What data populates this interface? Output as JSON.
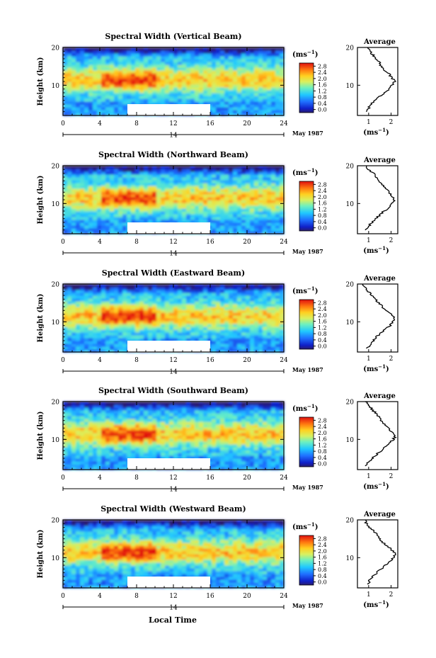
{
  "figure": {
    "x_axis_label": "Local Time",
    "date_label": "May 1987",
    "day_label": "14",
    "cbar_unit": "(ms",
    "cbar_unit_exp": "−1",
    "avg_title": "Average"
  },
  "chart_data": [
    {
      "type": "heatmap",
      "title": "Spectral Width (Vertical Beam)",
      "ylabel": "Height (km)",
      "xlabel": "Local Time",
      "x_ticks": [
        0,
        4,
        8,
        12,
        16,
        20,
        24
      ],
      "y_ticks": [
        10,
        20
      ],
      "xlim": [
        0,
        24
      ],
      "ylim": [
        2,
        20
      ],
      "colorbar_ticks": [
        0.0,
        0.4,
        0.8,
        1.2,
        1.6,
        2.0,
        2.4,
        2.8
      ],
      "colorbar_unit": "ms-1",
      "data_gap": {
        "x": [
          7,
          16
        ],
        "y": [
          2,
          5
        ]
      },
      "average_profile": {
        "title": "Average",
        "xlabel": "ms-1",
        "x_ticks": [
          1,
          2
        ],
        "xlim": [
          0.5,
          2.3
        ],
        "height": [
          3,
          4,
          5,
          6,
          7,
          8,
          9,
          10,
          11,
          12,
          13,
          14,
          15,
          16,
          17,
          18,
          19,
          20
        ],
        "value": [
          0.95,
          1.0,
          1.1,
          1.25,
          1.45,
          1.7,
          1.9,
          2.05,
          2.15,
          2.05,
          1.9,
          1.7,
          1.55,
          1.5,
          1.35,
          1.2,
          1.05,
          0.95
        ]
      }
    },
    {
      "type": "heatmap",
      "title": "Spectral Width (Northward Beam)",
      "ylabel": "Height (km)",
      "xlabel": "Local Time",
      "x_ticks": [
        0,
        4,
        8,
        12,
        16,
        20,
        24
      ],
      "y_ticks": [
        10,
        20
      ],
      "xlim": [
        0,
        24
      ],
      "ylim": [
        2,
        20
      ],
      "colorbar_ticks": [
        0.0,
        0.4,
        0.8,
        1.2,
        1.6,
        2.0,
        2.4,
        2.8
      ],
      "colorbar_unit": "ms-1",
      "data_gap": {
        "x": [
          7,
          16
        ],
        "y": [
          2,
          5
        ]
      },
      "average_profile": {
        "title": "Average",
        "xlabel": "ms-1",
        "x_ticks": [
          1,
          2
        ],
        "xlim": [
          0.5,
          2.3
        ],
        "height": [
          3,
          4,
          5,
          6,
          7,
          8,
          9,
          10,
          11,
          12,
          13,
          14,
          15,
          16,
          17,
          18,
          19,
          20
        ],
        "value": [
          0.9,
          1.0,
          1.15,
          1.3,
          1.5,
          1.7,
          1.9,
          2.05,
          2.15,
          2.05,
          1.9,
          1.75,
          1.6,
          1.5,
          1.35,
          1.2,
          1.0,
          0.9
        ]
      }
    },
    {
      "type": "heatmap",
      "title": "Spectral Width (Eastward Beam)",
      "ylabel": "Height (km)",
      "xlabel": "Local Time",
      "x_ticks": [
        0,
        4,
        8,
        12,
        16,
        20,
        24
      ],
      "y_ticks": [
        10,
        20
      ],
      "xlim": [
        0,
        24
      ],
      "ylim": [
        2,
        20
      ],
      "colorbar_ticks": [
        0.0,
        0.4,
        0.8,
        1.2,
        1.6,
        2.0,
        2.4,
        2.8
      ],
      "colorbar_unit": "ms-1",
      "data_gap": {
        "x": [
          7,
          16
        ],
        "y": [
          2,
          5
        ]
      },
      "average_profile": {
        "title": "Average",
        "xlabel": "ms-1",
        "x_ticks": [
          1,
          2
        ],
        "xlim": [
          0.5,
          2.3
        ],
        "height": [
          3,
          4,
          5,
          6,
          7,
          8,
          9,
          10,
          11,
          12,
          13,
          14,
          15,
          16,
          17,
          18,
          19,
          20
        ],
        "value": [
          0.95,
          1.05,
          1.2,
          1.35,
          1.55,
          1.75,
          1.95,
          2.1,
          2.15,
          2.0,
          1.8,
          1.6,
          1.45,
          1.3,
          1.15,
          1.0,
          0.85,
          0.75
        ]
      }
    },
    {
      "type": "heatmap",
      "title": "Spectral Width (Southward Beam)",
      "ylabel": "Height (km)",
      "xlabel": "Local Time",
      "x_ticks": [
        0,
        4,
        8,
        12,
        16,
        20,
        24
      ],
      "y_ticks": [
        10,
        20
      ],
      "xlim": [
        0,
        24
      ],
      "ylim": [
        2,
        20
      ],
      "colorbar_ticks": [
        0.0,
        0.4,
        0.8,
        1.2,
        1.6,
        2.0,
        2.4,
        2.8
      ],
      "colorbar_unit": "ms-1",
      "data_gap": {
        "x": [
          7,
          16
        ],
        "y": [
          2,
          5
        ]
      },
      "average_profile": {
        "title": "Average",
        "xlabel": "ms-1",
        "x_ticks": [
          1,
          2
        ],
        "xlim": [
          0.5,
          2.3
        ],
        "height": [
          3,
          4,
          5,
          6,
          7,
          8,
          9,
          10,
          11,
          12,
          13,
          14,
          15,
          16,
          17,
          18,
          19,
          20
        ],
        "value": [
          0.9,
          1.0,
          1.15,
          1.35,
          1.55,
          1.75,
          1.95,
          2.1,
          2.2,
          2.05,
          1.85,
          1.7,
          1.55,
          1.45,
          1.3,
          1.15,
          1.0,
          0.85
        ]
      }
    },
    {
      "type": "heatmap",
      "title": "Spectral Width (Westward Beam)",
      "ylabel": "Height (km)",
      "xlabel": "Local Time",
      "x_ticks": [
        0,
        4,
        8,
        12,
        16,
        20,
        24
      ],
      "y_ticks": [
        10,
        20
      ],
      "xlim": [
        0,
        24
      ],
      "ylim": [
        2,
        20
      ],
      "colorbar_ticks": [
        0.0,
        0.4,
        0.8,
        1.2,
        1.6,
        2.0,
        2.4,
        2.8
      ],
      "colorbar_unit": "ms-1",
      "data_gap": {
        "x": [
          7,
          16
        ],
        "y": [
          2,
          5
        ]
      },
      "average_profile": {
        "title": "Average",
        "xlabel": "ms-1",
        "x_ticks": [
          1,
          2
        ],
        "xlim": [
          0.5,
          2.3
        ],
        "height": [
          3,
          4,
          5,
          6,
          7,
          8,
          9,
          10,
          11,
          12,
          13,
          14,
          15,
          16,
          17,
          18,
          19,
          20
        ],
        "value": [
          1.0,
          1.05,
          1.2,
          1.35,
          1.55,
          1.75,
          1.95,
          2.1,
          2.2,
          2.05,
          1.85,
          1.65,
          1.5,
          1.4,
          1.25,
          1.05,
          0.9,
          0.85
        ]
      }
    }
  ]
}
